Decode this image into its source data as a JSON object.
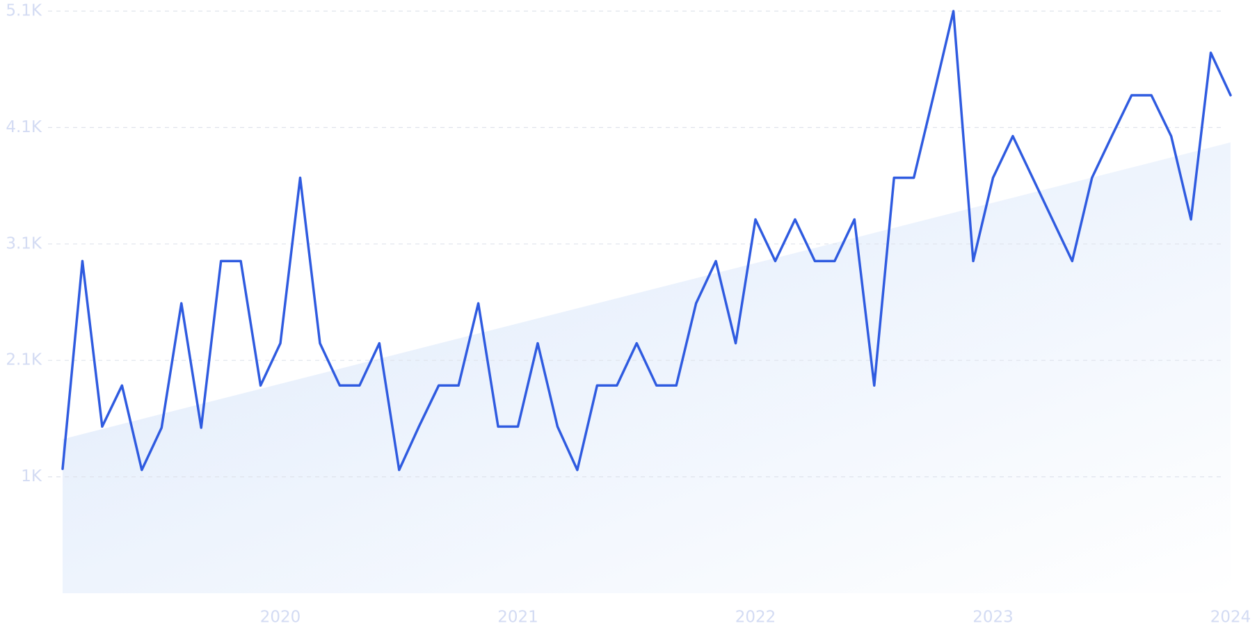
{
  "chart_data": {
    "type": "line",
    "categories": [
      null,
      null,
      null,
      null,
      null,
      null,
      null,
      null,
      null,
      null,
      null,
      "2020",
      null,
      null,
      null,
      null,
      null,
      null,
      null,
      null,
      null,
      null,
      null,
      "2021",
      null,
      null,
      null,
      null,
      null,
      null,
      null,
      null,
      null,
      null,
      null,
      "2022",
      null,
      null,
      null,
      null,
      null,
      null,
      null,
      null,
      null,
      null,
      null,
      "2023",
      null,
      null,
      null,
      null,
      null,
      null,
      null,
      null,
      null,
      null,
      null,
      "2024"
    ],
    "series": [
      {
        "color": "#2f5be0",
        "values": [
          1110,
          2930,
          1480,
          1840,
          1100,
          1470,
          2560,
          1470,
          2930,
          2930,
          1840,
          2210,
          3660,
          2210,
          1840,
          1840,
          2210,
          1100,
          1480,
          1840,
          1840,
          2560,
          1480,
          1480,
          2210,
          1480,
          1100,
          1840,
          1840,
          2210,
          1840,
          1840,
          2560,
          2930,
          2210,
          3295,
          2930,
          3295,
          2930,
          2930,
          3295,
          1840,
          3660,
          3660,
          4383,
          5120,
          2930,
          3660,
          4025,
          3660,
          3295,
          2930,
          3660,
          4025,
          4383,
          4383,
          4025,
          3295,
          4755,
          4383
        ]
      }
    ],
    "trend": [
      1370,
      3970
    ],
    "ylim": [
      20,
      5120
    ],
    "yticks": [
      {
        "value": 1040,
        "label": "1K"
      },
      {
        "value": 2060,
        "label": "2.1K"
      },
      {
        "value": 3080,
        "label": "3.1K"
      },
      {
        "value": 4100,
        "label": "4.1K"
      },
      {
        "value": 5120,
        "label": "5.1K"
      }
    ],
    "grid": true
  }
}
